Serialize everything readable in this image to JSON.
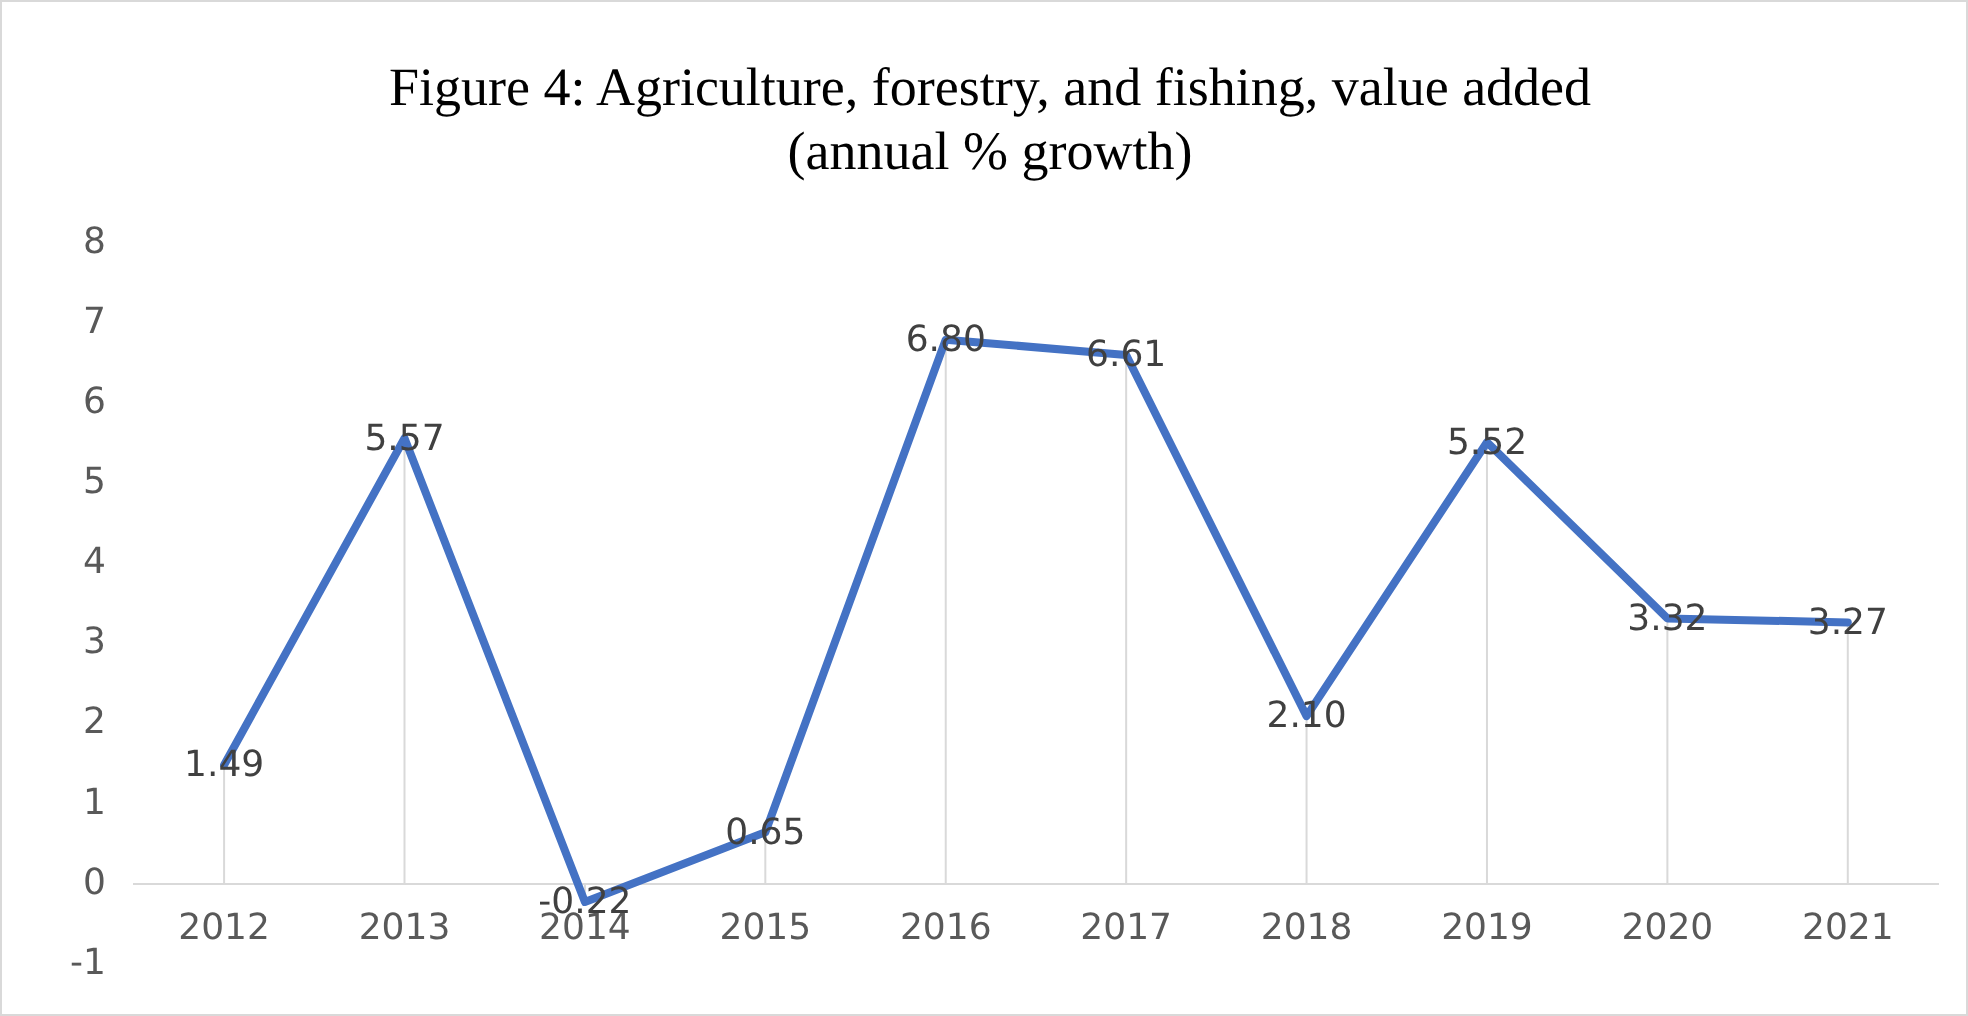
{
  "chart_data": {
    "type": "line",
    "title": "Figure 4: Agriculture, forestry, and fishing, value added\n(annual % growth)",
    "categories": [
      "2012",
      "2013",
      "2014",
      "2015",
      "2016",
      "2017",
      "2018",
      "2019",
      "2020",
      "2021"
    ],
    "series": [
      {
        "color": "#4472c4",
        "values": [
          1.49,
          5.57,
          -0.22,
          0.65,
          6.8,
          6.61,
          2.1,
          5.52,
          3.32,
          3.27
        ],
        "value_labels": [
          "1.49",
          "5.57",
          "-0.22",
          "0.65",
          "6.80",
          "6.61",
          "2.10",
          "5.52",
          "3.32",
          "3.27"
        ]
      }
    ],
    "ylim": [
      -1,
      8
    ],
    "yticks": [
      -1,
      0,
      1,
      2,
      3,
      4,
      5,
      6,
      7,
      8
    ],
    "grid": "x",
    "legend": false,
    "marker": "none",
    "line_style": "solid"
  }
}
